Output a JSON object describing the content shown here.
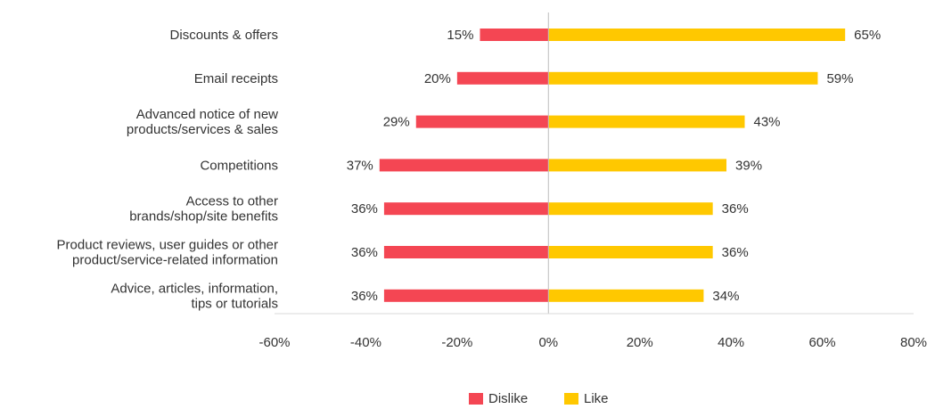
{
  "chart_data": {
    "type": "bar",
    "orientation": "horizontal",
    "stacked": "diverging",
    "categories": [
      [
        "Discounts & offers"
      ],
      [
        "Email receipts"
      ],
      [
        "Advanced notice of new",
        "products/services & sales"
      ],
      [
        "Competitions"
      ],
      [
        "Access to other",
        "brands/shop/site benefits"
      ],
      [
        "Product reviews, user guides or other",
        "product/service-related information"
      ],
      [
        "Advice, articles, information,",
        "tips or tutorials"
      ]
    ],
    "series": [
      {
        "name": "Dislike",
        "color": "#F44653",
        "values": [
          -15,
          -20,
          -29,
          -37,
          -36,
          -36,
          -36
        ],
        "labels": [
          "15%",
          "20%",
          "29%",
          "37%",
          "36%",
          "36%",
          "36%"
        ]
      },
      {
        "name": "Like",
        "color": "#FFC800",
        "values": [
          65,
          59,
          43,
          39,
          36,
          36,
          34
        ],
        "labels": [
          "65%",
          "59%",
          "43%",
          "39%",
          "36%",
          "36%",
          "34%"
        ]
      }
    ],
    "xlim": [
      -60,
      80
    ],
    "xticks": [
      -60,
      -40,
      -20,
      0,
      20,
      40,
      60,
      80
    ],
    "xtick_labels": [
      "-60%",
      "-40%",
      "-20%",
      "0%",
      "20%",
      "40%",
      "60%",
      "80%"
    ],
    "grid": false,
    "legend_position": "bottom-center"
  }
}
